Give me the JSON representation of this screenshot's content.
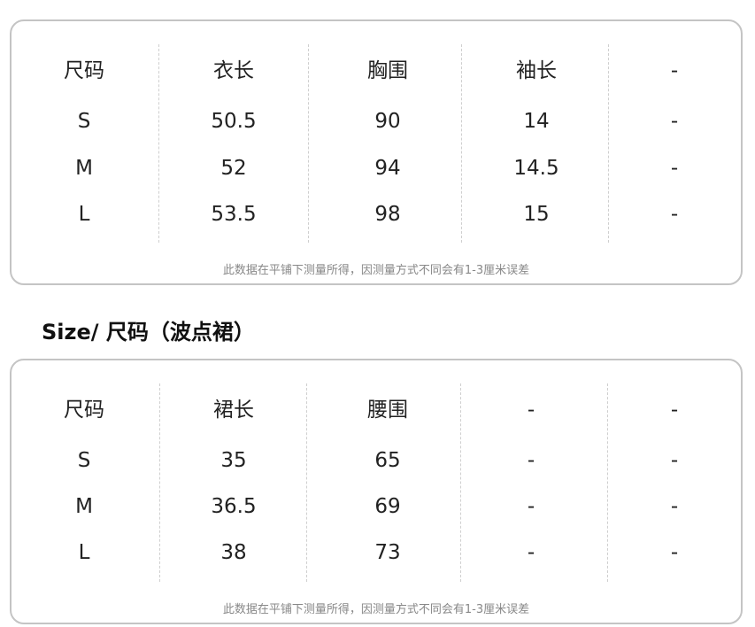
{
  "tables": [
    {
      "rows": [
        [
          "尺码",
          "衣长",
          "胸围",
          "袖长",
          "-"
        ],
        [
          "S",
          "50.5",
          "90",
          "14",
          "-"
        ],
        [
          "M",
          "52",
          "94",
          "14.5",
          "-"
        ],
        [
          "L",
          "53.5",
          "98",
          "15",
          "-"
        ]
      ],
      "note": "此数据在平铺下测量所得，因测量方式不同会有1-3厘米误差"
    },
    {
      "title": "Size/ 尺码（波点裙）",
      "rows": [
        [
          "尺码",
          "裙长",
          "腰围",
          "-",
          "-"
        ],
        [
          "S",
          "35",
          "65",
          "-",
          "-"
        ],
        [
          "M",
          "36.5",
          "69",
          "-",
          "-"
        ],
        [
          "L",
          "38",
          "73",
          "-",
          "-"
        ]
      ],
      "note": "此数据在平铺下测量所得，因测量方式不同会有1-3厘米误差"
    }
  ]
}
